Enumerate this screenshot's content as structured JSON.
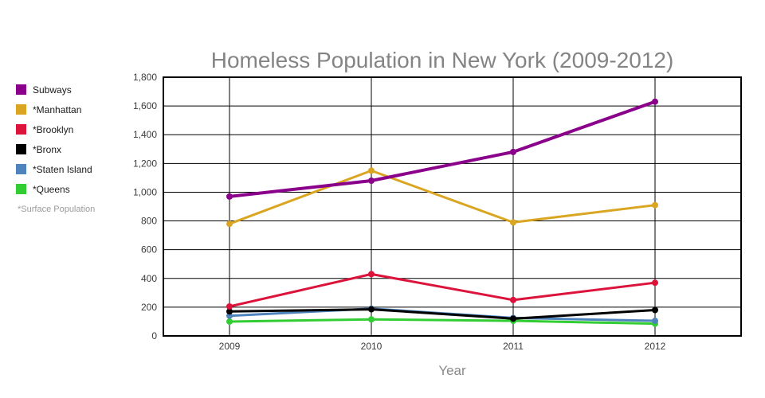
{
  "chart_data": {
    "type": "line",
    "title": "Homeless Population in New York (2009-2012)",
    "xlabel": "Year",
    "ylabel": "",
    "categories": [
      "2009",
      "2010",
      "2011",
      "2012"
    ],
    "ylim": [
      0,
      1800
    ],
    "ytick_step": 200,
    "grid": true,
    "legend_position": "left",
    "legend_note": "*Surface Population",
    "series": [
      {
        "name": "Subways",
        "color": "#8B008B",
        "values": [
          970,
          1080,
          1280,
          1630
        ]
      },
      {
        "name": "*Manhattan",
        "color": "#DAA520",
        "values": [
          780,
          1150,
          790,
          910
        ]
      },
      {
        "name": "*Brooklyn",
        "color": "#DC143C",
        "values": [
          205,
          430,
          250,
          370
        ]
      },
      {
        "name": "*Bronx",
        "color": "#000000",
        "values": [
          170,
          185,
          120,
          180
        ]
      },
      {
        "name": "*Staten Island",
        "color": "#4F83BB",
        "values": [
          140,
          190,
          125,
          105
        ]
      },
      {
        "name": "*Queens",
        "color": "#32CD32",
        "values": [
          100,
          115,
          105,
          85
        ]
      }
    ]
  }
}
